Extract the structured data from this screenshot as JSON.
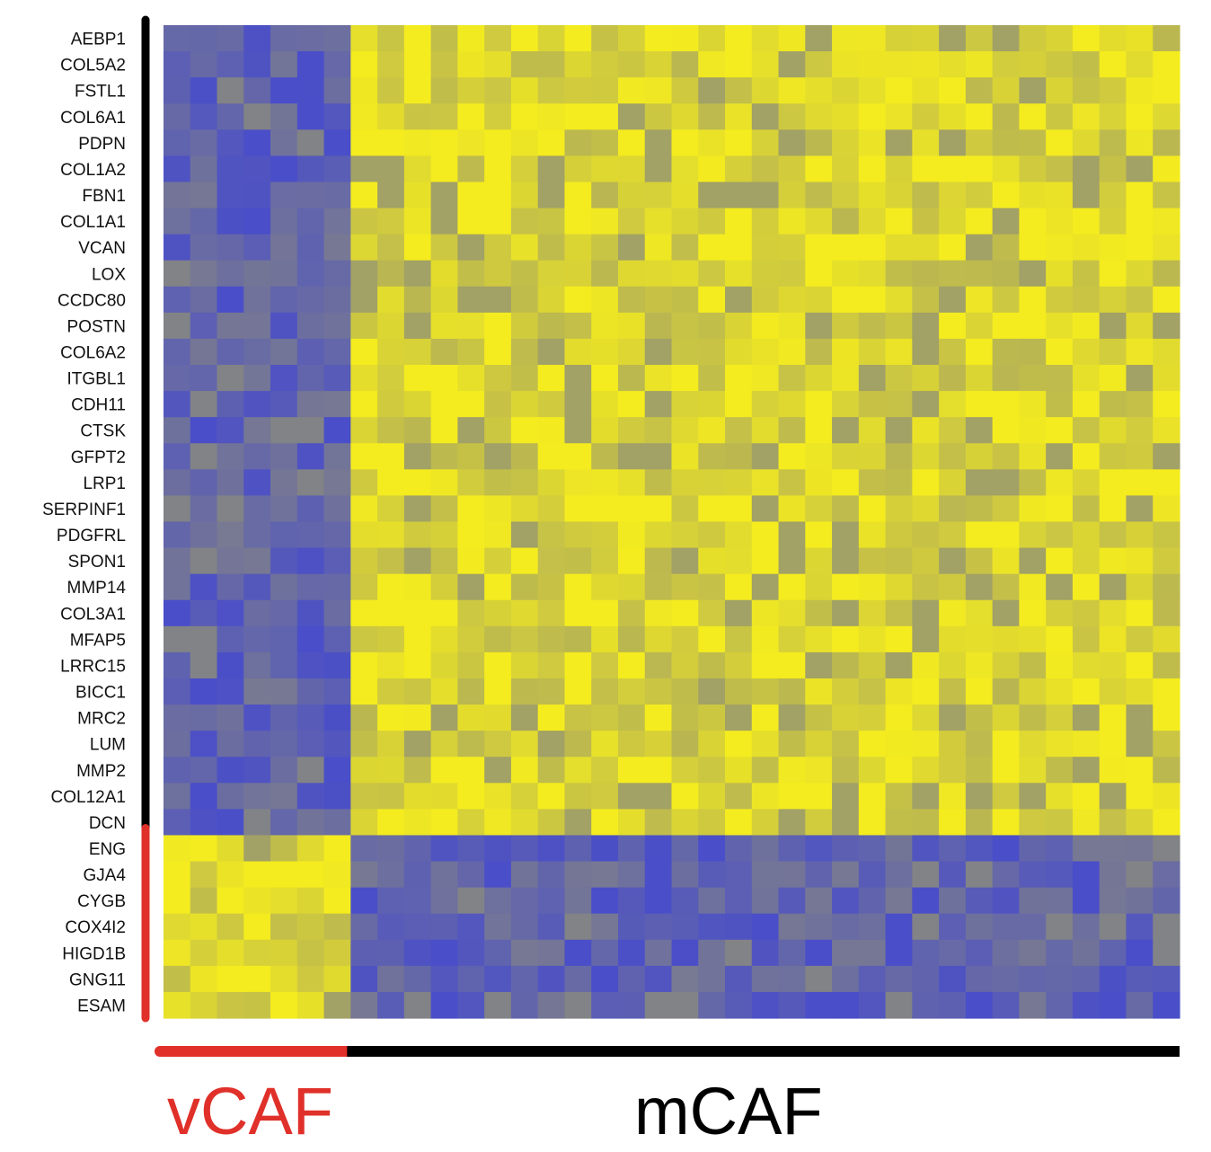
{
  "chart_data": {
    "type": "heatmap",
    "title": "",
    "xlabel": "",
    "ylabel": "",
    "rows": [
      "AEBP1",
      "COL5A2",
      "FSTL1",
      "COL6A1",
      "PDPN",
      "COL1A2",
      "FBN1",
      "COL1A1",
      "VCAN",
      "LOX",
      "CCDC80",
      "POSTN",
      "COL6A2",
      "ITGBL1",
      "CDH11",
      "CTSK",
      "GFPT2",
      "LRP1",
      "SERPINF1",
      "PDGFRL",
      "SPON1",
      "MMP14",
      "COL3A1",
      "MFAP5",
      "LRRC15",
      "BICC1",
      "MRC2",
      "LUM",
      "MMP2",
      "COL12A1",
      "DCN",
      "ENG",
      "GJA4",
      "CYGB",
      "COX4I2",
      "HIGD1B",
      "GNG11",
      "ESAM"
    ],
    "row_groups": [
      {
        "name": "mCAF",
        "start": 0,
        "count": 31,
        "color": "#000000"
      },
      {
        "name": "vCAF",
        "start": 31,
        "count": 7,
        "color": "#e0302a"
      }
    ],
    "column_groups": [
      {
        "name": "vCAF",
        "start": 0,
        "count": 7,
        "color": "#e0302a"
      },
      {
        "name": "mCAF",
        "start": 7,
        "count": 31,
        "color": "#000000"
      }
    ],
    "columns_count": 38,
    "color_scale": {
      "low": "#4a4ec8",
      "mid": "#8e8e78",
      "high": "#f4ec1e"
    },
    "value_range": [
      -1,
      1
    ],
    "block_means": {
      "mcaf_mcaf": 0.8,
      "vcaf_vcaf": 0.8,
      "mcaf_vcaf": -0.7,
      "vcaf_mcaf": -0.7
    }
  },
  "labels": {
    "vcaf": "vCAF",
    "mcaf": "mCAF"
  },
  "colors": {
    "vcaf": "#e0302a",
    "mcaf": "#000000"
  }
}
